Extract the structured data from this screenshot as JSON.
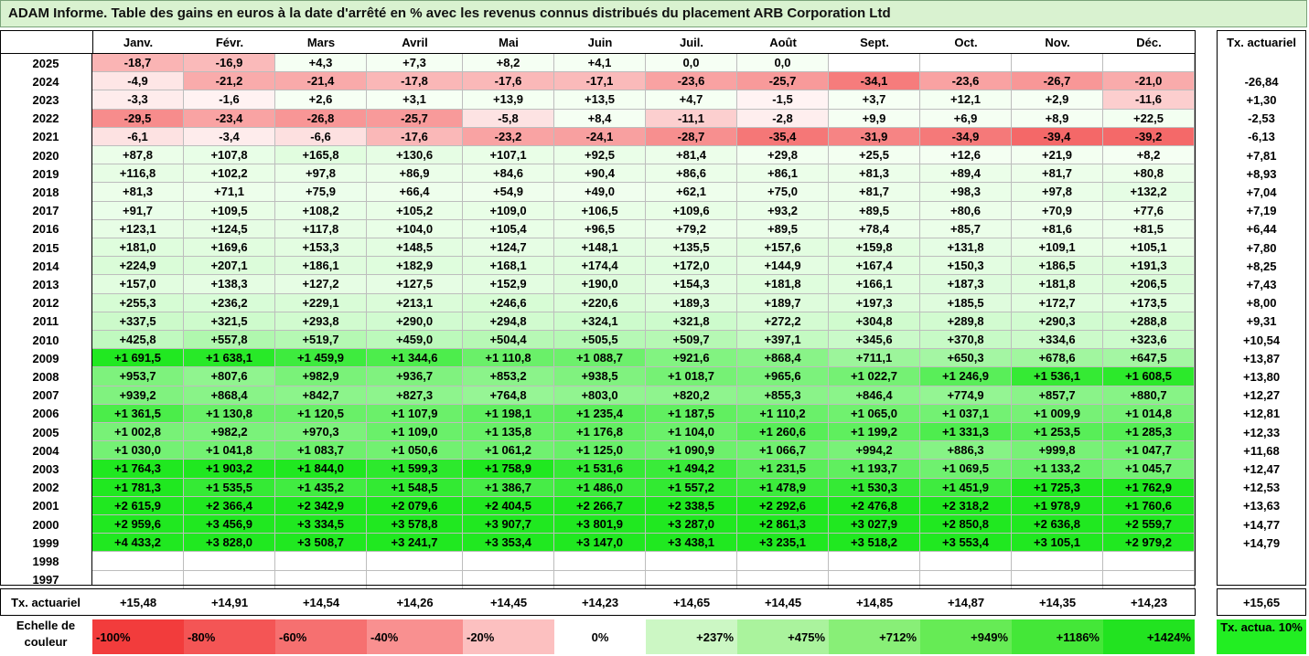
{
  "title": "ADAM Informe. Table des gains en euros à la date d'arrêté en % avec les revenus connus distribués du placement ARB Corporation Ltd",
  "chart_data": {
    "type": "table",
    "months": [
      "Janv.",
      "Févr.",
      "Mars",
      "Avril",
      "Mai",
      "Juin",
      "Juil.",
      "Août",
      "Sept.",
      "Oct.",
      "Nov.",
      "Déc."
    ],
    "annual_header": "Tx. actuariel",
    "rows": [
      {
        "year": "2025",
        "values": [
          "-18,7",
          "-16,9",
          "+4,3",
          "+7,3",
          "+8,2",
          "+4,1",
          "0,0",
          "0,0",
          "",
          "",
          "",
          ""
        ],
        "annual": ""
      },
      {
        "year": "2024",
        "values": [
          "-4,9",
          "-21,2",
          "-21,4",
          "-17,8",
          "-17,6",
          "-17,1",
          "-23,6",
          "-25,7",
          "-34,1",
          "-23,6",
          "-26,7",
          "-21,0"
        ],
        "annual": "-26,84"
      },
      {
        "year": "2023",
        "values": [
          "-3,3",
          "-1,6",
          "+2,6",
          "+3,1",
          "+13,9",
          "+13,5",
          "+4,7",
          "-1,5",
          "+3,7",
          "+12,1",
          "+2,9",
          "-11,6"
        ],
        "annual": "+1,30"
      },
      {
        "year": "2022",
        "values": [
          "-29,5",
          "-23,4",
          "-26,8",
          "-25,7",
          "-5,8",
          "+8,4",
          "-11,1",
          "-2,8",
          "+9,9",
          "+6,9",
          "+8,9",
          "+22,5"
        ],
        "annual": "-2,53"
      },
      {
        "year": "2021",
        "values": [
          "-6,1",
          "-3,4",
          "-6,6",
          "-17,6",
          "-23,2",
          "-24,1",
          "-28,7",
          "-35,4",
          "-31,9",
          "-34,9",
          "-39,4",
          "-39,2"
        ],
        "annual": "-6,13"
      },
      {
        "year": "2020",
        "values": [
          "+87,8",
          "+107,8",
          "+165,8",
          "+130,6",
          "+107,1",
          "+92,5",
          "+81,4",
          "+29,8",
          "+25,5",
          "+12,6",
          "+21,9",
          "+8,2"
        ],
        "annual": "+7,81"
      },
      {
        "year": "2019",
        "values": [
          "+116,8",
          "+102,2",
          "+97,8",
          "+86,9",
          "+84,6",
          "+90,4",
          "+86,6",
          "+86,1",
          "+81,3",
          "+89,4",
          "+81,7",
          "+80,8"
        ],
        "annual": "+8,93"
      },
      {
        "year": "2018",
        "values": [
          "+81,3",
          "+71,1",
          "+75,9",
          "+66,4",
          "+54,9",
          "+49,0",
          "+62,1",
          "+75,0",
          "+81,7",
          "+98,3",
          "+97,8",
          "+132,2"
        ],
        "annual": "+7,04"
      },
      {
        "year": "2017",
        "values": [
          "+91,7",
          "+109,5",
          "+108,2",
          "+105,2",
          "+109,0",
          "+106,5",
          "+109,6",
          "+93,2",
          "+89,5",
          "+80,6",
          "+70,9",
          "+77,6"
        ],
        "annual": "+7,19"
      },
      {
        "year": "2016",
        "values": [
          "+123,1",
          "+124,5",
          "+117,8",
          "+104,0",
          "+105,4",
          "+96,5",
          "+79,2",
          "+89,5",
          "+78,4",
          "+85,7",
          "+81,6",
          "+81,5"
        ],
        "annual": "+6,44"
      },
      {
        "year": "2015",
        "values": [
          "+181,0",
          "+169,6",
          "+153,3",
          "+148,5",
          "+124,7",
          "+148,1",
          "+135,5",
          "+157,6",
          "+159,8",
          "+131,8",
          "+109,1",
          "+105,1"
        ],
        "annual": "+7,80"
      },
      {
        "year": "2014",
        "values": [
          "+224,9",
          "+207,1",
          "+186,1",
          "+182,9",
          "+168,1",
          "+174,4",
          "+172,0",
          "+144,9",
          "+167,4",
          "+150,3",
          "+186,5",
          "+191,3"
        ],
        "annual": "+8,25"
      },
      {
        "year": "2013",
        "values": [
          "+157,0",
          "+138,3",
          "+127,2",
          "+127,5",
          "+152,9",
          "+190,0",
          "+154,3",
          "+181,8",
          "+166,1",
          "+187,3",
          "+181,8",
          "+206,5"
        ],
        "annual": "+7,43"
      },
      {
        "year": "2012",
        "values": [
          "+255,3",
          "+236,2",
          "+229,1",
          "+213,1",
          "+246,6",
          "+220,6",
          "+189,3",
          "+189,7",
          "+197,3",
          "+185,5",
          "+172,7",
          "+173,5"
        ],
        "annual": "+8,00"
      },
      {
        "year": "2011",
        "values": [
          "+337,5",
          "+321,5",
          "+293,8",
          "+290,0",
          "+294,8",
          "+324,1",
          "+321,8",
          "+272,2",
          "+304,8",
          "+289,8",
          "+290,3",
          "+288,8"
        ],
        "annual": "+9,31"
      },
      {
        "year": "2010",
        "values": [
          "+425,8",
          "+557,8",
          "+519,7",
          "+459,0",
          "+504,4",
          "+505,5",
          "+509,7",
          "+397,1",
          "+345,6",
          "+370,8",
          "+334,6",
          "+323,6"
        ],
        "annual": "+10,54"
      },
      {
        "year": "2009",
        "values": [
          "+1 691,5",
          "+1 638,1",
          "+1 459,9",
          "+1 344,6",
          "+1 110,8",
          "+1 088,7",
          "+921,6",
          "+868,4",
          "+711,1",
          "+650,3",
          "+678,6",
          "+647,5"
        ],
        "annual": "+13,87"
      },
      {
        "year": "2008",
        "values": [
          "+953,7",
          "+807,6",
          "+982,9",
          "+936,7",
          "+853,2",
          "+938,5",
          "+1 018,7",
          "+965,6",
          "+1 022,7",
          "+1 246,9",
          "+1 536,1",
          "+1 608,5"
        ],
        "annual": "+13,80"
      },
      {
        "year": "2007",
        "values": [
          "+939,2",
          "+868,4",
          "+842,7",
          "+827,3",
          "+764,8",
          "+803,0",
          "+820,2",
          "+855,3",
          "+846,4",
          "+774,9",
          "+857,7",
          "+880,7"
        ],
        "annual": "+12,27"
      },
      {
        "year": "2006",
        "values": [
          "+1 361,5",
          "+1 130,8",
          "+1 120,5",
          "+1 107,9",
          "+1 198,1",
          "+1 235,4",
          "+1 187,5",
          "+1 110,2",
          "+1 065,0",
          "+1 037,1",
          "+1 009,9",
          "+1 014,8"
        ],
        "annual": "+12,81"
      },
      {
        "year": "2005",
        "values": [
          "+1 002,8",
          "+982,2",
          "+970,3",
          "+1 109,0",
          "+1 135,8",
          "+1 176,8",
          "+1 104,0",
          "+1 260,6",
          "+1 199,2",
          "+1 331,3",
          "+1 253,5",
          "+1 285,3"
        ],
        "annual": "+12,33"
      },
      {
        "year": "2004",
        "values": [
          "+1 030,0",
          "+1 041,8",
          "+1 083,7",
          "+1 050,6",
          "+1 061,2",
          "+1 125,0",
          "+1 090,9",
          "+1 066,7",
          "+994,2",
          "+886,3",
          "+999,8",
          "+1 047,7"
        ],
        "annual": "+11,68"
      },
      {
        "year": "2003",
        "values": [
          "+1 764,3",
          "+1 903,2",
          "+1 844,0",
          "+1 599,3",
          "+1 758,9",
          "+1 531,6",
          "+1 494,2",
          "+1 231,5",
          "+1 193,7",
          "+1 069,5",
          "+1 133,2",
          "+1 045,7"
        ],
        "annual": "+12,47"
      },
      {
        "year": "2002",
        "values": [
          "+1 781,3",
          "+1 535,5",
          "+1 435,2",
          "+1 548,5",
          "+1 386,7",
          "+1 486,0",
          "+1 557,2",
          "+1 478,9",
          "+1 530,3",
          "+1 451,9",
          "+1 725,3",
          "+1 762,9"
        ],
        "annual": "+12,53"
      },
      {
        "year": "2001",
        "values": [
          "+2 615,9",
          "+2 366,4",
          "+2 342,9",
          "+2 079,6",
          "+2 404,5",
          "+2 266,7",
          "+2 338,5",
          "+2 292,6",
          "+2 476,8",
          "+2 318,2",
          "+1 978,9",
          "+1 760,6"
        ],
        "annual": "+13,63"
      },
      {
        "year": "2000",
        "values": [
          "+2 959,6",
          "+3 456,9",
          "+3 334,5",
          "+3 578,8",
          "+3 907,7",
          "+3 801,9",
          "+3 287,0",
          "+2 861,3",
          "+3 027,9",
          "+2 850,8",
          "+2 636,8",
          "+2 559,7"
        ],
        "annual": "+14,77"
      },
      {
        "year": "1999",
        "values": [
          "+4 433,2",
          "+3 828,0",
          "+3 508,7",
          "+3 241,7",
          "+3 353,4",
          "+3 147,0",
          "+3 438,1",
          "+3 235,1",
          "+3 518,2",
          "+3 553,4",
          "+3 105,1",
          "+2 979,2"
        ],
        "annual": "+14,79"
      },
      {
        "year": "1998",
        "values": [
          "",
          "",
          "",
          "",
          "",
          "",
          "",
          "",
          "",
          "",
          "",
          ""
        ],
        "annual": ""
      },
      {
        "year": "1997",
        "values": [
          "",
          "",
          "",
          "",
          "",
          "",
          "",
          "",
          "",
          "",
          "",
          ""
        ],
        "annual": ""
      }
    ],
    "footer": {
      "label": "Tx. actuariel",
      "values": [
        "+15,48",
        "+14,91",
        "+14,54",
        "+14,26",
        "+14,45",
        "+14,23",
        "+14,65",
        "+14,45",
        "+14,85",
        "+14,87",
        "+14,35",
        "+14,23"
      ],
      "annual": "+15,65"
    },
    "color_scale": {
      "label": "Echelle de couleur",
      "items": [
        {
          "text": "-100%",
          "color": "#f23c3c",
          "align": "left"
        },
        {
          "text": "-80%",
          "color": "#f45555",
          "align": "left"
        },
        {
          "text": "-60%",
          "color": "#f67070",
          "align": "left"
        },
        {
          "text": "-40%",
          "color": "#f99090",
          "align": "left"
        },
        {
          "text": "-20%",
          "color": "#fcc0c0",
          "align": "left"
        },
        {
          "text": "0%",
          "color": "#ffffff",
          "align": "center"
        },
        {
          "text": "+237%",
          "color": "#ccf7c4",
          "align": "right"
        },
        {
          "text": "+475%",
          "color": "#aaf39d",
          "align": "right"
        },
        {
          "text": "+712%",
          "color": "#88ef77",
          "align": "right"
        },
        {
          "text": "+949%",
          "color": "#66eb55",
          "align": "right"
        },
        {
          "text": "+1186%",
          "color": "#44e738",
          "align": "right"
        },
        {
          "text": "+1424%",
          "color": "#22e320",
          "align": "right"
        }
      ],
      "annual_legend": "Tx. actua. 10%",
      "annual_legend_color": "#22ee22"
    }
  }
}
